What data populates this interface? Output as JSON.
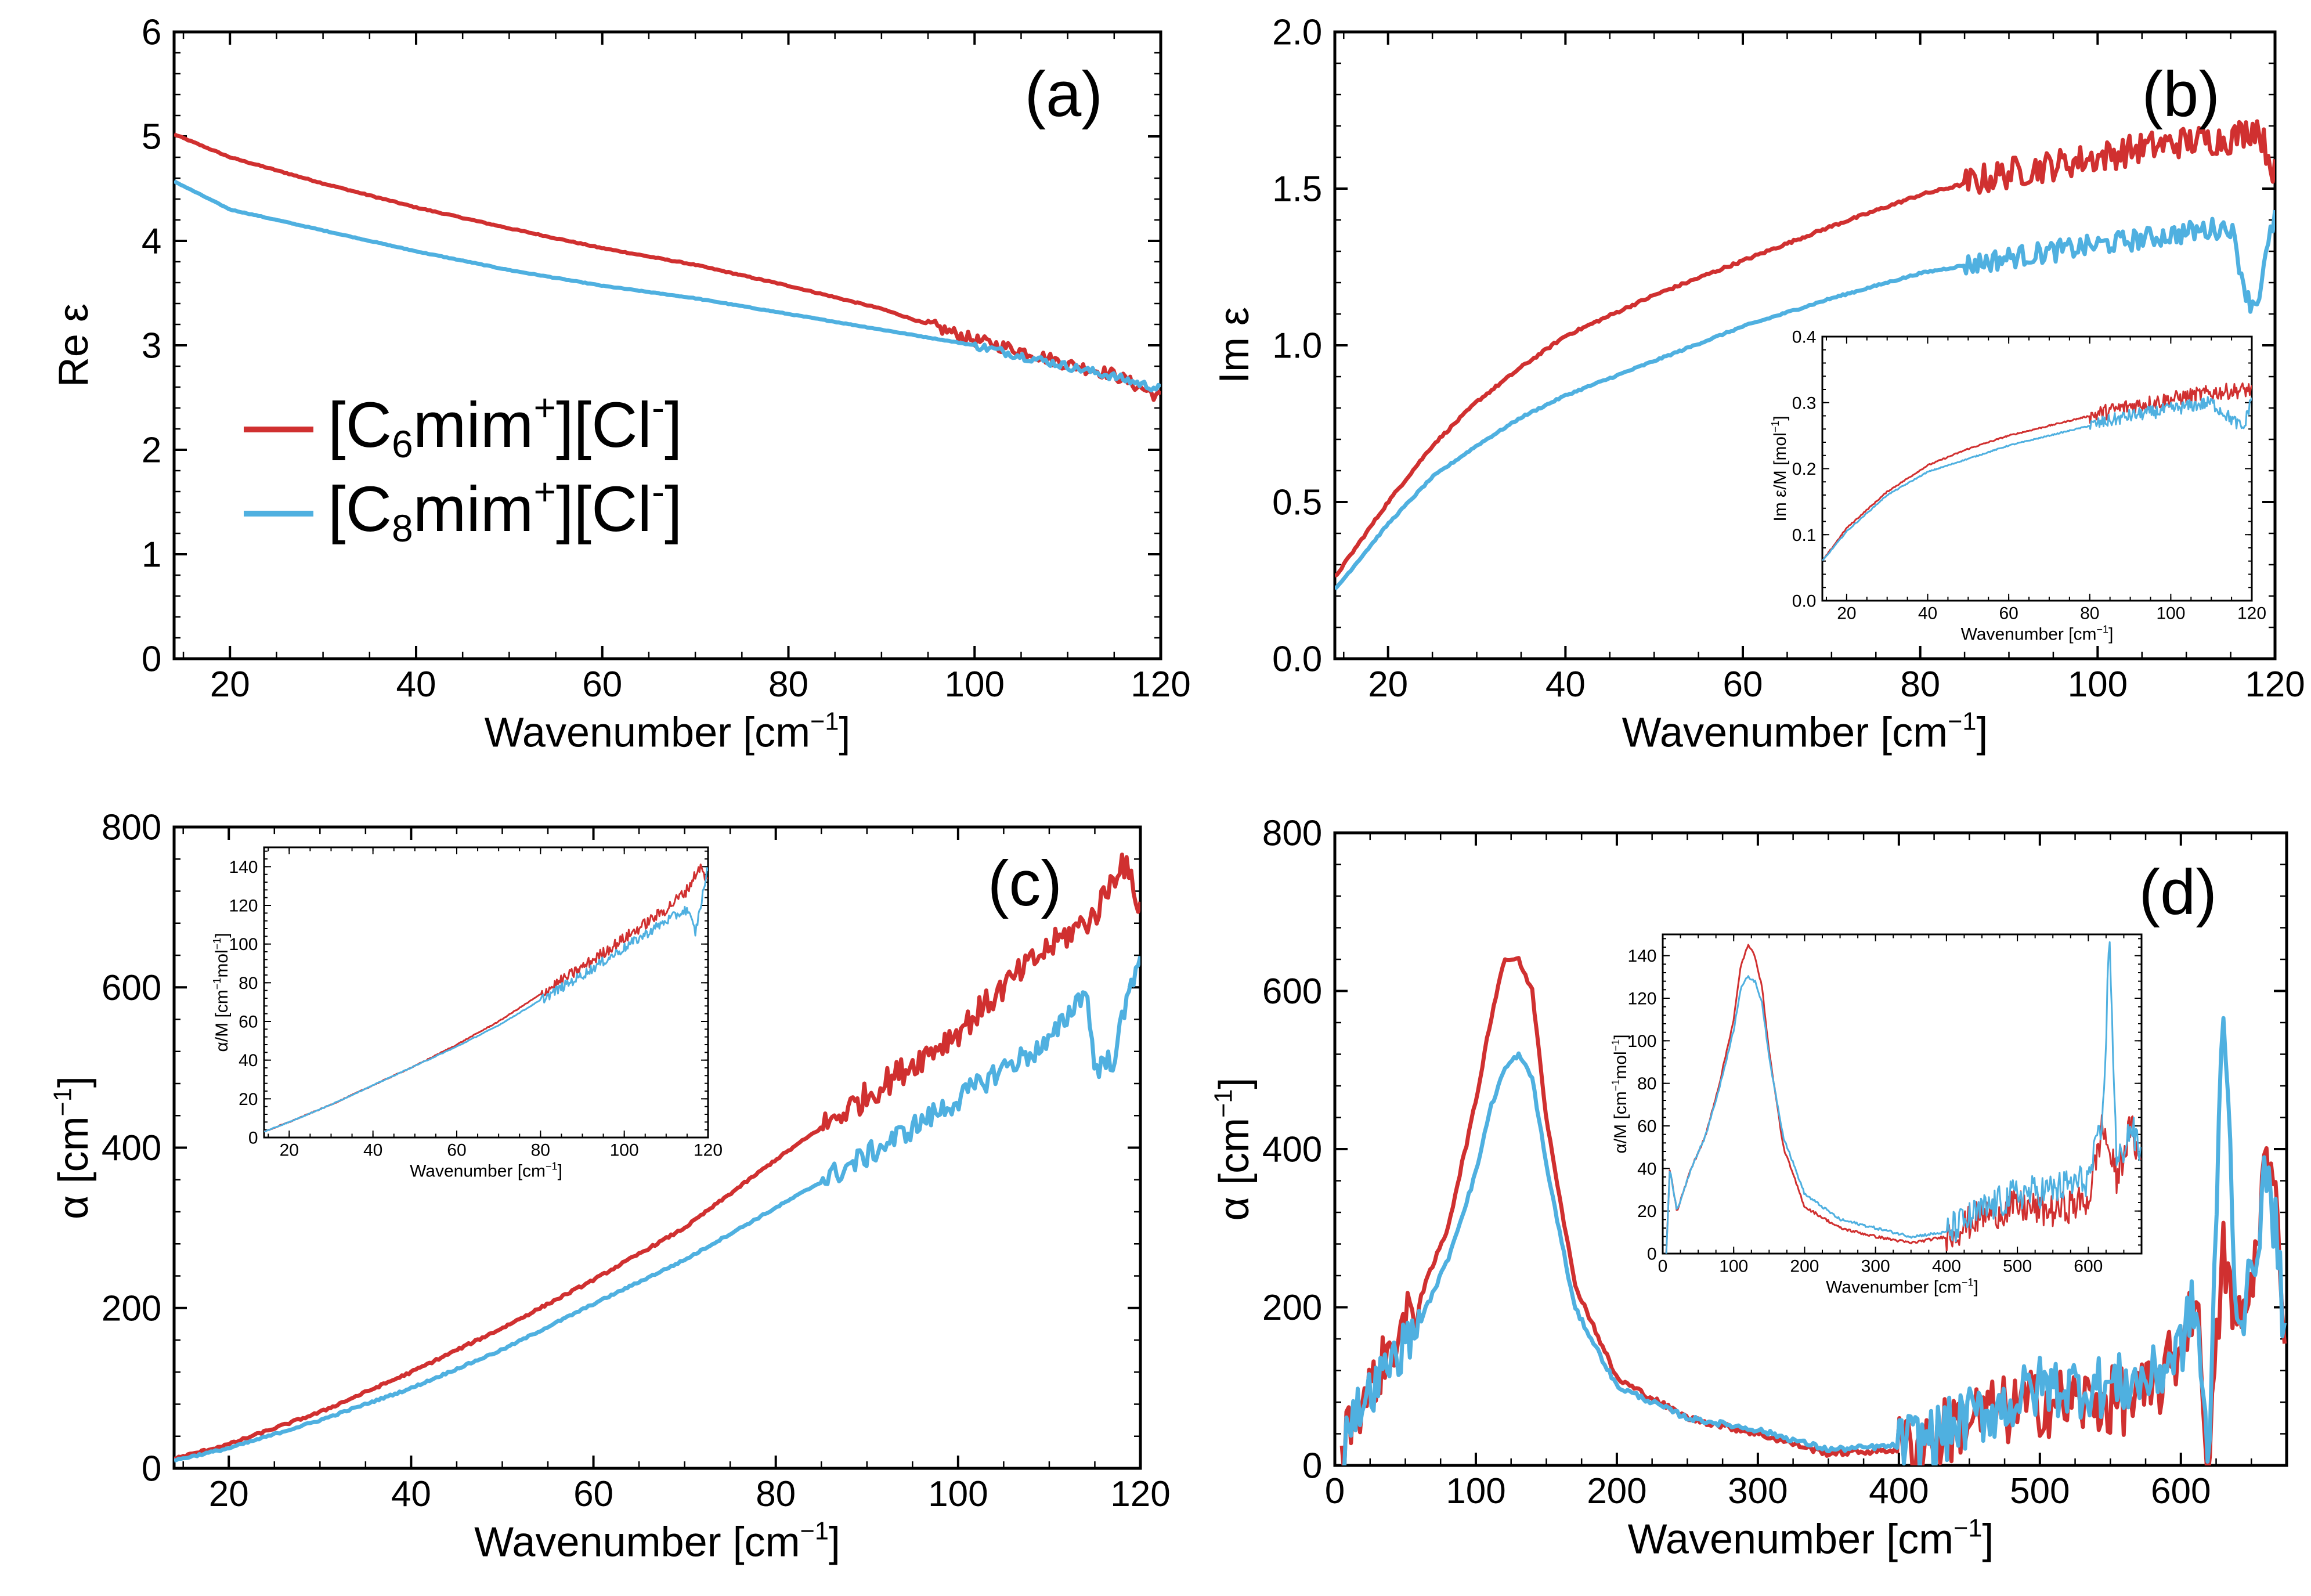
{
  "colors": {
    "red": "#d03030",
    "blue": "#4fb0e0"
  },
  "legend": {
    "s1_main": "C",
    "s1_sub": "6",
    "s1_mid": "mim",
    "s1_sup1": "+",
    "s1_mid2": "Cl",
    "s1_sup2": "-",
    "s2_main": "C",
    "s2_sub": "8",
    "s2_mid": "mim",
    "s2_sup1": "+",
    "s2_mid2": "Cl",
    "s2_sup2": "-"
  },
  "chart_data": [
    {
      "type": "line",
      "panel": "(a)",
      "xlabel": "Wavenumber [cm",
      "xlabel_sup": "−1",
      "xlabel_end": "]",
      "ylabel": "Re ε",
      "ylabel_sup": "",
      "xlim": [
        14,
        120
      ],
      "ylim": [
        0,
        6
      ],
      "xticks": [
        "20",
        "40",
        "60",
        "80",
        "100",
        "120"
      ],
      "xtick_values": [
        20,
        40,
        60,
        80,
        100,
        120
      ],
      "yticks": [
        "0",
        "1",
        "2",
        "3",
        "4",
        "5",
        "6"
      ],
      "ytick_values": [
        0,
        1,
        2,
        3,
        4,
        5,
        6
      ],
      "series": [
        {
          "name": "[C6mim+][Cl-]",
          "color": "red",
          "x": [
            14,
            20,
            30,
            40,
            50,
            60,
            70,
            80,
            90,
            100,
            105,
            110,
            115,
            120
          ],
          "y": [
            5.02,
            4.8,
            4.55,
            4.32,
            4.12,
            3.93,
            3.77,
            3.57,
            3.35,
            3.05,
            2.95,
            2.82,
            2.72,
            2.5
          ],
          "noise": 0.06,
          "noise_from": 95
        },
        {
          "name": "[C8mim+][Cl-]",
          "color": "blue",
          "x": [
            14,
            20,
            30,
            40,
            50,
            60,
            70,
            80,
            90,
            100,
            105,
            110,
            115,
            120
          ],
          "y": [
            4.57,
            4.3,
            4.1,
            3.9,
            3.72,
            3.57,
            3.45,
            3.3,
            3.15,
            3.0,
            2.9,
            2.8,
            2.7,
            2.58
          ],
          "noise": 0.04,
          "noise_from": 100
        }
      ]
    },
    {
      "type": "line",
      "panel": "(b)",
      "xlabel": "Wavenumber [cm",
      "xlabel_sup": "−1",
      "xlabel_end": "]",
      "ylabel": "Im ε",
      "ylabel_sup": "",
      "xlim": [
        14,
        120
      ],
      "ylim": [
        0,
        2.0
      ],
      "xticks": [
        "20",
        "40",
        "60",
        "80",
        "100",
        "120"
      ],
      "xtick_values": [
        20,
        40,
        60,
        80,
        100,
        120
      ],
      "yticks": [
        "0.0",
        "0.5",
        "1.0",
        "1.5",
        "2.0"
      ],
      "ytick_values": [
        0,
        0.5,
        1.0,
        1.5,
        2.0
      ],
      "series": [
        {
          "name": "[C6mim+][Cl-]",
          "color": "red",
          "x": [
            14,
            20,
            25,
            30,
            35,
            40,
            50,
            60,
            70,
            80,
            90,
            100,
            105,
            110,
            115,
            118,
            120
          ],
          "y": [
            0.26,
            0.5,
            0.68,
            0.82,
            0.93,
            1.03,
            1.16,
            1.27,
            1.38,
            1.48,
            1.55,
            1.6,
            1.63,
            1.65,
            1.66,
            1.7,
            1.55
          ],
          "noise": 0.05,
          "noise_from": 85
        },
        {
          "name": "[C8mim+][Cl-]",
          "color": "blue",
          "x": [
            14,
            20,
            25,
            30,
            35,
            40,
            50,
            60,
            70,
            80,
            90,
            100,
            105,
            110,
            115,
            117,
            118,
            120
          ],
          "y": [
            0.22,
            0.43,
            0.58,
            0.68,
            0.77,
            0.84,
            0.95,
            1.06,
            1.15,
            1.23,
            1.28,
            1.32,
            1.34,
            1.36,
            1.38,
            1.14,
            1.14,
            1.42
          ],
          "noise": 0.035,
          "noise_from": 85
        }
      ],
      "inset": {
        "xlabel": "Wavenumber [cm",
        "xlabel_sup": "−1",
        "xlabel_end": "]",
        "ylabel": "Im ε/M [mol",
        "ylabel_sup": "−1",
        "ylabel_end": "]",
        "xlim": [
          14,
          120
        ],
        "ylim": [
          0,
          0.4
        ],
        "xticks": [
          "20",
          "40",
          "60",
          "80",
          "100",
          "120"
        ],
        "xtick_values": [
          20,
          40,
          60,
          80,
          100,
          120
        ],
        "yticks": [
          "0.0",
          "0.1",
          "0.2",
          "0.3",
          "0.4"
        ],
        "ytick_values": [
          0,
          0.1,
          0.2,
          0.3,
          0.4
        ],
        "series": [
          {
            "color": "red",
            "x": [
              14,
              20,
              30,
              40,
              50,
              60,
              70,
              80,
              90,
              100,
              110,
              120
            ],
            "y": [
              0.06,
              0.11,
              0.165,
              0.205,
              0.23,
              0.25,
              0.265,
              0.28,
              0.295,
              0.305,
              0.315,
              0.32
            ],
            "noise": 0.012,
            "noise_from": 80
          },
          {
            "color": "blue",
            "x": [
              14,
              20,
              30,
              40,
              50,
              60,
              70,
              80,
              90,
              100,
              110,
              118,
              120
            ],
            "y": [
              0.06,
              0.105,
              0.16,
              0.195,
              0.215,
              0.235,
              0.25,
              0.265,
              0.28,
              0.29,
              0.3,
              0.26,
              0.31
            ],
            "noise": 0.01,
            "noise_from": 80
          }
        ]
      }
    },
    {
      "type": "line",
      "panel": "(c)",
      "xlabel": "Wavenumber [cm",
      "xlabel_sup": "−1",
      "xlabel_end": "]",
      "ylabel": "α [cm",
      "ylabel_sup": "−1",
      "ylabel_end": "]",
      "xlim": [
        14,
        120
      ],
      "ylim": [
        0,
        800
      ],
      "xticks": [
        "20",
        "40",
        "60",
        "80",
        "100",
        "120"
      ],
      "xtick_values": [
        20,
        40,
        60,
        80,
        100,
        120
      ],
      "yticks": [
        "0",
        "200",
        "400",
        "600",
        "800"
      ],
      "ytick_values": [
        0,
        200,
        400,
        600,
        800
      ],
      "series": [
        {
          "name": "[C6mim+][Cl-]",
          "color": "red",
          "x": [
            14,
            20,
            30,
            40,
            50,
            60,
            70,
            80,
            90,
            100,
            105,
            110,
            115,
            118,
            120
          ],
          "y": [
            12,
            30,
            70,
            120,
            175,
            235,
            300,
            385,
            465,
            545,
            600,
            650,
            690,
            760,
            700
          ],
          "noise": 18,
          "noise_from": 85
        },
        {
          "name": "[C8mim+][Cl-]",
          "color": "blue",
          "x": [
            14,
            20,
            30,
            40,
            50,
            60,
            70,
            80,
            90,
            100,
            105,
            110,
            114,
            115,
            117,
            120
          ],
          "y": [
            10,
            25,
            60,
            100,
            148,
            205,
            260,
            325,
            390,
            460,
            500,
            530,
            600,
            500,
            510,
            650
          ],
          "noise": 15,
          "noise_from": 85
        }
      ],
      "inset": {
        "xlabel": "Wavenumber [cm",
        "xlabel_sup": "−1",
        "xlabel_end": "]",
        "ylabel": "α/M [cm",
        "ylabel_sup": "−1",
        "ylabel_end": "mol",
        "ylabel_sup2": "−1",
        "ylabel_end2": "]",
        "xlim": [
          14,
          120
        ],
        "ylim": [
          0,
          150
        ],
        "xticks": [
          "20",
          "40",
          "60",
          "80",
          "100",
          "120"
        ],
        "xtick_values": [
          20,
          40,
          60,
          80,
          100,
          120
        ],
        "yticks": [
          "0",
          "20",
          "40",
          "60",
          "80",
          "100",
          "120",
          "140"
        ],
        "ytick_values": [
          0,
          20,
          40,
          60,
          80,
          100,
          120,
          140
        ],
        "series": [
          {
            "color": "red",
            "x": [
              14,
              20,
              30,
              40,
              50,
              60,
              70,
              80,
              90,
              100,
              110,
              115,
              118,
              120
            ],
            "y": [
              3,
              8,
              17,
              27,
              37,
              48,
              60,
              74,
              88,
              103,
              118,
              128,
              140,
              132
            ],
            "noise": 3,
            "noise_from": 80
          },
          {
            "color": "blue",
            "x": [
              14,
              20,
              30,
              40,
              50,
              60,
              70,
              80,
              90,
              100,
              110,
              115,
              117,
              120
            ],
            "y": [
              3,
              8,
              17,
              27,
              37,
              47,
              58,
              71,
              84,
              98,
              112,
              118,
              106,
              140
            ],
            "noise": 2.5,
            "noise_from": 80
          }
        ]
      }
    },
    {
      "type": "line",
      "panel": "(d)",
      "xlabel": "Wavenumber [cm",
      "xlabel_sup": "−1",
      "xlabel_end": "]",
      "ylabel": "α [cm",
      "ylabel_sup": "−1",
      "ylabel_end": "]",
      "xlim": [
        0,
        675
      ],
      "ylim": [
        0,
        800
      ],
      "xticks": [
        "0",
        "100",
        "200",
        "300",
        "400",
        "500",
        "600"
      ],
      "xtick_values": [
        0,
        100,
        200,
        300,
        400,
        500,
        600
      ],
      "yticks": [
        "0",
        "200",
        "400",
        "600",
        "800"
      ],
      "ytick_values": [
        0,
        200,
        400,
        600,
        800
      ],
      "series": [
        {
          "name": "[C6mim+][Cl-]",
          "color": "red",
          "x": [
            5,
            10,
            20,
            40,
            60,
            80,
            100,
            110,
            120,
            130,
            140,
            150,
            170,
            200,
            250,
            300,
            350,
            400,
            430,
            450,
            480,
            500,
            520,
            550,
            580,
            600,
            610,
            620,
            630,
            640,
            650,
            660,
            670,
            675
          ],
          "y": [
            0,
            60,
            80,
            150,
            210,
            300,
            460,
            560,
            640,
            640,
            600,
            440,
            230,
            110,
            60,
            40,
            15,
            20,
            40,
            60,
            70,
            80,
            80,
            80,
            90,
            150,
            220,
            0,
            270,
            170,
            220,
            390,
            300,
            70
          ],
          "noise": 45,
          "noise_from": 400,
          "noise_front": 35
        },
        {
          "name": "[C8mim+][Cl-]",
          "color": "blue",
          "x": [
            5,
            10,
            20,
            40,
            60,
            80,
            100,
            110,
            120,
            130,
            140,
            150,
            170,
            200,
            250,
            300,
            350,
            400,
            430,
            450,
            480,
            500,
            520,
            550,
            580,
            600,
            610,
            620,
            630,
            640,
            650,
            660,
            670,
            675
          ],
          "y": [
            0,
            60,
            80,
            130,
            180,
            260,
            370,
            450,
            500,
            520,
            490,
            380,
            200,
            100,
            60,
            45,
            20,
            25,
            40,
            60,
            80,
            100,
            100,
            100,
            110,
            150,
            210,
            0,
            600,
            180,
            230,
            370,
            270,
            90
          ],
          "noise": 40,
          "noise_from": 400,
          "noise_front": 30
        }
      ],
      "inset": {
        "xlabel": "Wavenumber [cm",
        "xlabel_sup": "−1",
        "xlabel_end": "]",
        "ylabel": "α/M [cm",
        "ylabel_sup": "−1",
        "ylabel_end": "mol",
        "ylabel_sup2": "−1",
        "ylabel_end2": "]",
        "xlim": [
          0,
          675
        ],
        "ylim": [
          0,
          150
        ],
        "xticks": [
          "0",
          "100",
          "200",
          "300",
          "400",
          "500",
          "600"
        ],
        "xtick_values": [
          0,
          100,
          200,
          300,
          400,
          500,
          600
        ],
        "yticks": [
          "0",
          "20",
          "40",
          "60",
          "80",
          "100",
          "120",
          "140"
        ],
        "ytick_values": [
          0,
          20,
          40,
          60,
          80,
          100,
          120,
          140
        ],
        "series": [
          {
            "color": "red",
            "x": [
              5,
              10,
              20,
              40,
              60,
              80,
              100,
              110,
              120,
              130,
              140,
              150,
              170,
              200,
              250,
              300,
              350,
              400,
              450,
              500,
              550,
              600,
              620,
              640,
              660,
              675
            ],
            "y": [
              0,
              40,
              20,
              40,
              55,
              80,
              110,
              135,
              145,
              140,
              125,
              95,
              50,
              22,
              12,
              8,
              5,
              8,
              18,
              22,
              20,
              25,
              60,
              35,
              60,
              40
            ],
            "noise": 8,
            "noise_from": 400
          },
          {
            "color": "blue",
            "x": [
              5,
              10,
              20,
              40,
              60,
              80,
              100,
              110,
              120,
              130,
              140,
              150,
              170,
              200,
              250,
              300,
              350,
              400,
              450,
              500,
              550,
              600,
              620,
              630,
              640,
              660,
              675
            ],
            "y": [
              0,
              40,
              20,
              40,
              55,
              78,
              105,
              125,
              130,
              128,
              118,
              92,
              55,
              28,
              16,
              12,
              8,
              10,
              20,
              28,
              30,
              35,
              60,
              150,
              40,
              60,
              45
            ],
            "noise": 8,
            "noise_from": 400
          }
        ]
      }
    }
  ]
}
